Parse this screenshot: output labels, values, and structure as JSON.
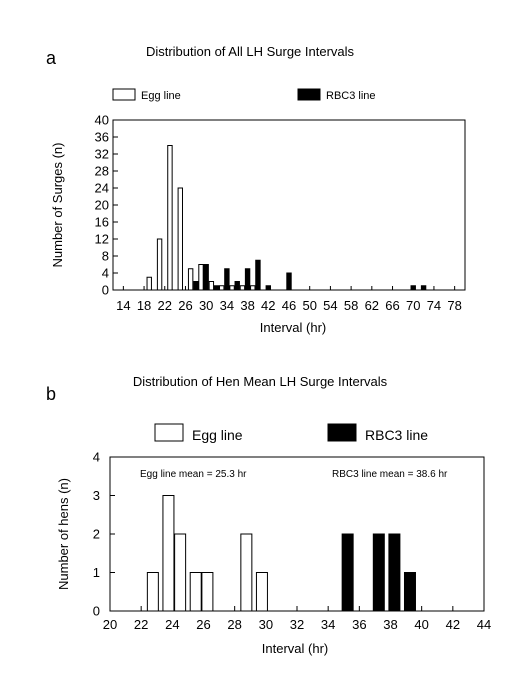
{
  "chart_data": [
    {
      "panel_label": "a",
      "type": "bar",
      "title": "Distribution of All LH Surge Intervals",
      "xlabel": "Interval (hr)",
      "ylabel": "Number of Surges (n)",
      "xlim": [
        12,
        80
      ],
      "ylim": [
        0,
        40
      ],
      "xticks": [
        14,
        18,
        22,
        26,
        30,
        34,
        38,
        42,
        46,
        50,
        54,
        58,
        62,
        66,
        70,
        74,
        78
      ],
      "xtick_labels": [
        "14",
        "18",
        "22",
        "26",
        "30",
        "34",
        "38",
        "42",
        "46",
        "50",
        "54",
        "58",
        "62",
        "66",
        "70",
        "74",
        "78"
      ],
      "yticks": [
        0,
        4,
        8,
        12,
        16,
        20,
        24,
        28,
        32,
        36,
        40
      ],
      "ytick_labels": [
        "0",
        "4",
        "8",
        "12",
        "16",
        "20",
        "24",
        "28",
        "32",
        "36",
        "40"
      ],
      "grid": false,
      "legend_position": "top",
      "series": [
        {
          "name": "Egg line",
          "color": "#ffffff",
          "x": [
            19,
            21,
            23,
            25,
            27,
            29,
            31,
            33,
            35,
            37,
            39
          ],
          "values": [
            3,
            12,
            34,
            24,
            5,
            6,
            2,
            1,
            1,
            1,
            1
          ]
        },
        {
          "name": "RBC3 line",
          "color": "#000000",
          "x": [
            28,
            30,
            32,
            34,
            36,
            38,
            40,
            42,
            46,
            70,
            72
          ],
          "values": [
            2,
            6,
            1,
            5,
            2,
            5,
            7,
            1,
            4,
            1,
            1
          ]
        }
      ]
    },
    {
      "panel_label": "b",
      "type": "bar",
      "title": "Distribution of Hen Mean LH Surge Intervals",
      "xlabel": "Interval (hr)",
      "ylabel": "Number of hens (n)",
      "xlim": [
        20,
        44
      ],
      "ylim": [
        0,
        4
      ],
      "xticks": [
        20,
        22,
        24,
        26,
        28,
        30,
        32,
        34,
        36,
        38,
        40,
        42,
        44
      ],
      "xtick_labels": [
        "20",
        "22",
        "24",
        "26",
        "28",
        "30",
        "32",
        "34",
        "36",
        "38",
        "40",
        "42",
        "44"
      ],
      "yticks": [
        0,
        1,
        2,
        3,
        4
      ],
      "ytick_labels": [
        "0",
        "1",
        "2",
        "3",
        "4"
      ],
      "grid": false,
      "legend_position": "top",
      "annotations": [
        "Egg line mean = 25.3 hr",
        "RBC3 line mean = 38.6 hr"
      ],
      "series": [
        {
          "name": "Egg line",
          "color": "#ffffff",
          "x": [
            22.75,
            23.75,
            24.5,
            25.5,
            26.25,
            28.75,
            29.75
          ],
          "values": [
            1,
            3,
            2,
            1,
            1,
            2,
            1
          ]
        },
        {
          "name": "RBC3 line",
          "color": "#000000",
          "x": [
            35.25,
            37.25,
            38.25,
            39.25
          ],
          "values": [
            2,
            2,
            2,
            1
          ]
        }
      ]
    }
  ]
}
